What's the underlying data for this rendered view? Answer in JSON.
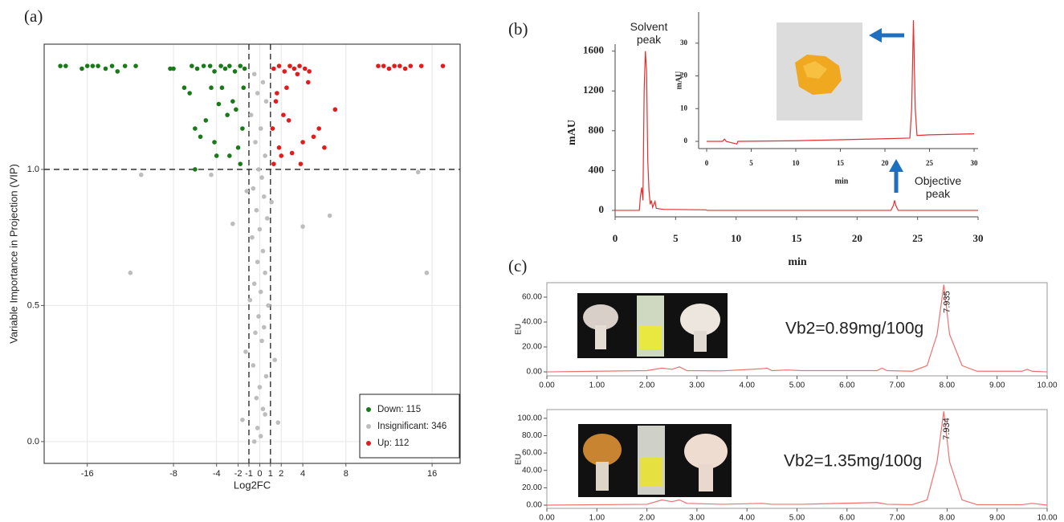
{
  "chart_data": [
    {
      "type": "scatter",
      "panel": "(a)",
      "xlabel": "Log2FC",
      "ylabel": "Variable Importance in Projection (VIP)",
      "xlim": [
        -20,
        18.6
      ],
      "ylim": [
        -0.08,
        1.46
      ],
      "xticks": [
        -16,
        -8,
        -4,
        -2,
        -1,
        0,
        1,
        2,
        4,
        8,
        16
      ],
      "yticks": [
        {
          "value": 0,
          "label": "0.0"
        },
        {
          "value": 0.5,
          "label": "0.5"
        },
        {
          "value": 1,
          "label": "1.0"
        }
      ],
      "grid": true,
      "ref_x": [
        -1,
        1
      ],
      "ref_y": [
        1
      ],
      "legend": "bottom-right",
      "series": [
        {
          "name": "Down: 115",
          "color": "#1a7a1a",
          "x": [
            -18.5,
            -18,
            -16.5,
            -16,
            -15.5,
            -15,
            -14.3,
            -13.7,
            -13.2,
            -12.5,
            -11.5,
            -8.3,
            -8,
            -6.3,
            -5.8,
            -5.2,
            -4.6,
            -4.2,
            -3.6,
            -3.2,
            -2.8,
            -2.3,
            -1.8,
            -1.4,
            -6.5,
            -6,
            -5.5,
            -4.2,
            -4,
            -3,
            -2.5,
            -2,
            -1.5,
            -6,
            -3.5,
            -1.8,
            -2.2,
            -5,
            -7,
            -4.5,
            -2.8,
            -1.6,
            -3.8
          ],
          "values": [
            1.38,
            1.38,
            1.37,
            1.38,
            1.38,
            1.38,
            1.37,
            1.38,
            1.36,
            1.38,
            1.38,
            1.37,
            1.37,
            1.38,
            1.37,
            1.38,
            1.38,
            1.36,
            1.38,
            1.37,
            1.38,
            1.36,
            1.38,
            1.37,
            1.28,
            1.15,
            1.12,
            1.1,
            1.05,
            1.2,
            1.25,
            1.08,
            1.3,
            1.0,
            1.3,
            1.02,
            1.22,
            1.18,
            1.3,
            1.3,
            1.05,
            1.15,
            1.24
          ]
        },
        {
          "name": "Insignificant: 346",
          "color": "#bdbdbd",
          "x": [
            -0.5,
            0.3,
            -0.2,
            0.6,
            -0.8,
            0.1,
            -0.4,
            0.5,
            -0.1,
            0.2,
            -0.6,
            0.4,
            -0.3,
            0.7,
            0,
            -0.7,
            0.3,
            -0.2,
            0.5,
            -0.5,
            0.1,
            -0.9,
            0.8,
            -0.1,
            0.4,
            -0.4,
            0.2,
            -1.3,
            1.4,
            -0.6,
            0.6,
            0,
            -0.3,
            0.3,
            -1.6,
            1.7,
            -0.2,
            0.1,
            -0.5,
            0.5,
            -11,
            -2.5,
            -12,
            6.5,
            15.5,
            14.7,
            4,
            -4.5,
            -1.2,
            1.1
          ],
          "values": [
            1.35,
            1.32,
            1.28,
            1.25,
            1.2,
            1.15,
            1.1,
            1.05,
            1.0,
            0.97,
            0.93,
            0.9,
            0.85,
            0.82,
            0.78,
            0.75,
            0.7,
            0.66,
            0.62,
            0.58,
            0.55,
            0.52,
            0.5,
            0.46,
            0.42,
            0.4,
            0.37,
            0.33,
            0.3,
            0.28,
            0.24,
            0.2,
            0.16,
            0.12,
            0.08,
            0.07,
            0.05,
            0.02,
            0.0,
            0.1,
            0.98,
            0.8,
            0.62,
            0.83,
            0.62,
            0.99,
            0.79,
            0.98,
            0.92,
            0.88
          ]
        },
        {
          "name": "Up: 112",
          "color": "#e41a1c",
          "x": [
            11,
            11.5,
            12,
            12.5,
            13,
            13.5,
            14,
            15,
            17,
            1.3,
            1.8,
            2.3,
            2.8,
            3.2,
            3.7,
            4.2,
            4.6,
            7,
            6,
            5.5,
            2,
            3,
            4,
            1.5,
            2.5,
            1.2,
            3.5,
            1.8,
            2.2,
            4.5,
            5,
            1.3,
            3.8,
            1.6,
            2.7
          ],
          "values": [
            1.38,
            1.38,
            1.37,
            1.38,
            1.38,
            1.37,
            1.38,
            1.38,
            1.38,
            1.37,
            1.38,
            1.36,
            1.38,
            1.37,
            1.38,
            1.37,
            1.36,
            1.22,
            1.08,
            1.15,
            1.05,
            1.06,
            1.1,
            1.25,
            1.3,
            1.15,
            1.35,
            1.08,
            1.2,
            1.32,
            1.12,
            1.02,
            1.02,
            1.28,
            1.18
          ]
        }
      ]
    },
    {
      "type": "line",
      "panel": "(b)",
      "xlabel": "min",
      "ylabel": "mAU",
      "color": "#e03030",
      "xlim": [
        0,
        30
      ],
      "ylim": [
        -65,
        1670
      ],
      "xticks": [
        0,
        5,
        10,
        15,
        20,
        25,
        30
      ],
      "yticks": [
        0,
        400,
        800,
        1200,
        1600
      ],
      "annotations": [
        "Solvent peak",
        "Objective peak"
      ],
      "x": [
        0,
        2.0,
        2.1,
        2.2,
        2.3,
        2.4,
        2.5,
        2.6,
        2.7,
        2.8,
        2.9,
        3.0,
        3.1,
        3.3,
        3.4,
        4,
        7.5,
        7.6,
        22.8,
        23.0,
        23.1,
        23.2,
        23.4,
        30
      ],
      "values": [
        0,
        0,
        150,
        230,
        100,
        1200,
        1600,
        1400,
        500,
        200,
        60,
        100,
        30,
        90,
        20,
        10,
        5,
        0,
        0,
        50,
        100,
        50,
        0,
        0
      ]
    },
    {
      "type": "line",
      "xlabel": "min",
      "ylabel": "mAU",
      "color": "#e03030",
      "xlim": [
        -0.9,
        30.45
      ],
      "ylim": [
        -2.2,
        39.5
      ],
      "xticks": [
        0,
        5,
        10,
        15,
        20,
        25,
        30
      ],
      "yticks": [
        0,
        10,
        20,
        30
      ],
      "x": [
        0,
        1.8,
        2,
        2.2,
        3.4,
        3.5,
        10,
        15,
        20,
        22.8,
        23.0,
        23.2,
        23.4,
        23.6,
        25,
        30
      ],
      "values": [
        0,
        0,
        0.7,
        0,
        -0.8,
        0,
        0.2,
        0.5,
        0.8,
        1,
        10,
        37,
        10,
        1.8,
        2,
        2.3
      ]
    },
    {
      "type": "line",
      "panel": "(c)",
      "ylabel": "EU",
      "color": "#f07070",
      "annotations": [
        "Vb2=0.89mg/100g"
      ],
      "peak_label": 7.935,
      "xlim": [
        0,
        10
      ],
      "ylim": [
        -3.2,
        71.6
      ],
      "xticks": [
        {
          "value": 0,
          "label": "0.00"
        },
        {
          "value": 1,
          "label": "1.00"
        },
        {
          "value": 2,
          "label": "2.00"
        },
        {
          "value": 3,
          "label": "3.00"
        },
        {
          "value": 4,
          "label": "4.00"
        },
        {
          "value": 5,
          "label": "5.00"
        },
        {
          "value": 6,
          "label": "6.00"
        },
        {
          "value": 7,
          "label": "7.00"
        },
        {
          "value": 8,
          "label": "8.00"
        },
        {
          "value": 9,
          "label": "9.00"
        },
        {
          "value": 10,
          "label": "10.00"
        }
      ],
      "yticks": [
        {
          "value": 0,
          "label": "0.00"
        },
        {
          "value": 20,
          "label": "20.00"
        },
        {
          "value": 40,
          "label": "40.00"
        },
        {
          "value": 60,
          "label": "60.00"
        }
      ],
      "x": [
        0,
        1,
        2,
        2.3,
        2.5,
        2.65,
        2.8,
        3.5,
        4.3,
        4.4,
        4.5,
        4.8,
        5.1,
        6.6,
        6.7,
        6.8,
        7.3,
        7.6,
        7.8,
        7.935,
        8.05,
        8.3,
        8.6,
        9.5,
        9.6,
        9.7,
        10
      ],
      "values": [
        0,
        0.5,
        1,
        3,
        2,
        4,
        1,
        0.8,
        2.5,
        3,
        1,
        1.5,
        1,
        1,
        3,
        1,
        0.5,
        5,
        30,
        70,
        30,
        5,
        0.5,
        0.5,
        2,
        0.5,
        0
      ]
    },
    {
      "type": "line",
      "ylabel": "EU",
      "color": "#f07070",
      "annotations": [
        "Vb2=1.35mg/100g"
      ],
      "peak_label": 7.934,
      "xlim": [
        0,
        10
      ],
      "ylim": [
        -3.7,
        110
      ],
      "xticks": [
        {
          "value": 0,
          "label": "0.00"
        },
        {
          "value": 1,
          "label": "1.00"
        },
        {
          "value": 2,
          "label": "2.00"
        },
        {
          "value": 3,
          "label": "3.00"
        },
        {
          "value": 4,
          "label": "4.00"
        },
        {
          "value": 5,
          "label": "5.00"
        },
        {
          "value": 6,
          "label": "6.00"
        },
        {
          "value": 7,
          "label": "7.00"
        },
        {
          "value": 8,
          "label": "8.00"
        },
        {
          "value": 9,
          "label": "9.00"
        },
        {
          "value": 10,
          "label": "10.00"
        }
      ],
      "yticks": [
        {
          "value": 0,
          "label": "0.00"
        },
        {
          "value": 20,
          "label": "20.00"
        },
        {
          "value": 40,
          "label": "40.00"
        },
        {
          "value": 60,
          "label": "60.00"
        },
        {
          "value": 80,
          "label": "80.00"
        },
        {
          "value": 100,
          "label": "100.00"
        }
      ],
      "x": [
        0,
        1,
        2,
        2.3,
        2.5,
        2.65,
        2.8,
        3.5,
        4.3,
        4.5,
        5.1,
        6.6,
        6.8,
        7.3,
        7.6,
        7.8,
        7.934,
        8.05,
        8.3,
        8.6,
        9.5,
        9.7,
        10
      ],
      "values": [
        0,
        0.5,
        1,
        6,
        4,
        6,
        2,
        1,
        2,
        1,
        1,
        3,
        1,
        0.5,
        6,
        50,
        108,
        50,
        6,
        0.5,
        0.5,
        2,
        0
      ]
    }
  ]
}
